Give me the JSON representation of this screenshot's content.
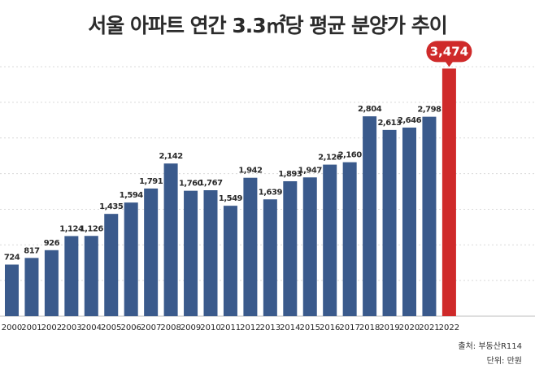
{
  "title": "서울 아파트 연간 3.3㎡당 평균 분양가 추이",
  "source": "출처: 부동산R114",
  "unit": "단위: 만원",
  "colors": {
    "bar": "#3a5a8c",
    "highlight": "#cf2a2a",
    "grid": "#d9d9d9",
    "text": "#333333"
  },
  "chart_data": {
    "type": "bar",
    "categories": [
      "2000",
      "2001",
      "2002",
      "2003",
      "2004",
      "2005",
      "2006",
      "2007",
      "2008",
      "2009",
      "2010",
      "2011",
      "2012",
      "2013",
      "2014",
      "2015",
      "2016",
      "2017",
      "2018",
      "2019",
      "2020",
      "2021",
      "2022"
    ],
    "values": [
      724,
      817,
      926,
      1124,
      1126,
      1435,
      1594,
      1791,
      2142,
      1760,
      1767,
      1549,
      1942,
      1639,
      1893,
      1947,
      2126,
      2160,
      2804,
      2613,
      2646,
      2798,
      3474
    ],
    "data_labels": [
      "724",
      "817",
      "926",
      "1,124",
      "1,126",
      "1,435",
      "1,594",
      "1,791",
      "2,142",
      "1,760",
      "1,767",
      "1,549",
      "1,942",
      "1,639",
      "1,893",
      "1,947",
      "2,126",
      "2,160",
      "2,804",
      "2,613",
      "2,646",
      "2,798",
      "3,474"
    ],
    "highlight_index": 22,
    "ylim": [
      0,
      3900
    ],
    "grid": true
  }
}
